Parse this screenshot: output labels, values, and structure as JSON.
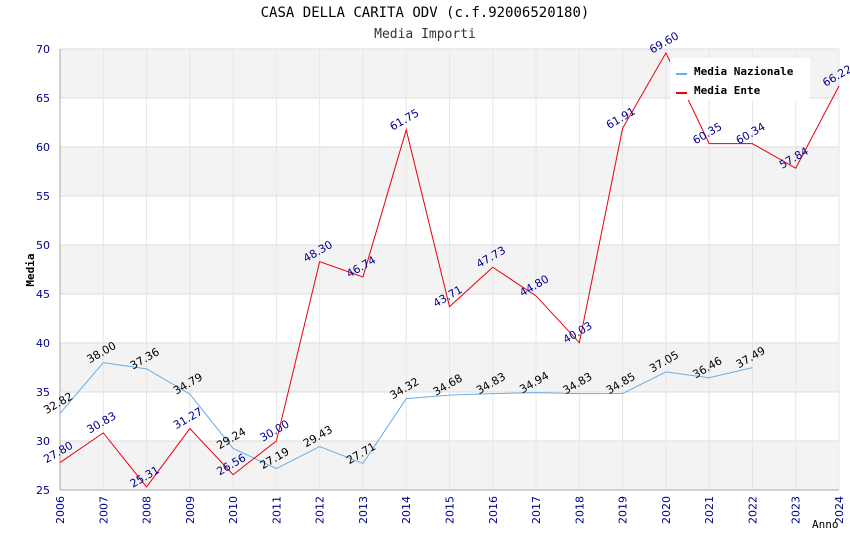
{
  "chart_data": {
    "type": "line",
    "title": "CASA DELLA CARITA ODV (c.f.92006520180)",
    "subtitle": "Media Importi",
    "xlabel": "Anno",
    "ylabel": "Media",
    "ylim": [
      25,
      70
    ],
    "yticks": [
      25,
      30,
      35,
      40,
      45,
      50,
      55,
      60,
      65,
      70
    ],
    "x": [
      "2006",
      "2007",
      "2008",
      "2009",
      "2010",
      "2011",
      "2012",
      "2013",
      "2014",
      "2015",
      "2016",
      "2017",
      "2018",
      "2019",
      "2020",
      "2021",
      "2022",
      "2023",
      "2024"
    ],
    "grid": "horizontal bands",
    "legend_position": "top-right",
    "series": [
      {
        "name": "Media Nazionale",
        "color": "#6aaee8",
        "label_color": "#000000",
        "values": [
          32.82,
          38.0,
          37.36,
          34.79,
          29.24,
          27.19,
          29.43,
          27.71,
          34.32,
          34.68,
          34.83,
          34.94,
          34.83,
          34.85,
          37.05,
          36.46,
          37.49,
          null,
          null
        ],
        "labels": [
          "32.82",
          "38.00",
          "37.36",
          "34.79",
          "29.24",
          "27.19",
          "29.43",
          "27.71",
          "34.32",
          "34.68",
          "34.83",
          "34.94",
          "34.83",
          "34.85",
          "37.05",
          "36.46",
          "37.49",
          null,
          null
        ]
      },
      {
        "name": "Media Ente",
        "color": "#e8000b",
        "label_color": "#00008b",
        "values": [
          27.8,
          30.83,
          25.31,
          31.27,
          26.56,
          30.0,
          48.3,
          46.74,
          61.75,
          43.71,
          47.73,
          44.8,
          40.03,
          61.91,
          69.6,
          60.35,
          60.34,
          57.84,
          66.22
        ],
        "labels": [
          "27.80",
          "30.83",
          "25.31",
          "31.27",
          "26.56",
          "30.00",
          "48.30",
          "46.74",
          "61.75",
          "43.71",
          "47.73",
          "44.80",
          "40.03",
          "61.91",
          "69.60",
          "60.35",
          "60.34",
          "57.84",
          "66.22"
        ]
      }
    ]
  }
}
